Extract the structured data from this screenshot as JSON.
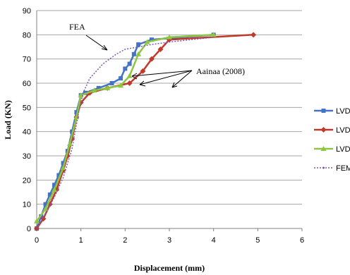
{
  "chart_data": {
    "type": "line",
    "xlabel": "Displacement (mm)",
    "ylabel": "Load (KN)",
    "xlim": [
      0,
      6
    ],
    "ylim": [
      0,
      90
    ],
    "x_ticks": [
      "0",
      "1",
      "2",
      "3",
      "4",
      "5",
      "6"
    ],
    "y_ticks": [
      "0",
      "10",
      "20",
      "30",
      "40",
      "50",
      "60",
      "70",
      "80",
      "90"
    ],
    "grid": "horizontal",
    "legend_position": "right",
    "series": [
      {
        "name": "LVDT",
        "color": "#4472C4",
        "marker": "square",
        "points": [
          [
            0,
            0
          ],
          [
            0.1,
            5
          ],
          [
            0.2,
            10
          ],
          [
            0.3,
            14
          ],
          [
            0.4,
            18
          ],
          [
            0.5,
            22
          ],
          [
            0.6,
            27
          ],
          [
            0.7,
            32
          ],
          [
            0.8,
            40
          ],
          [
            0.9,
            48
          ],
          [
            1.0,
            55
          ],
          [
            1.1,
            56
          ],
          [
            1.4,
            58
          ],
          [
            1.7,
            60
          ],
          [
            1.9,
            62
          ],
          [
            2.0,
            66
          ],
          [
            2.1,
            68
          ],
          [
            2.2,
            72
          ],
          [
            2.3,
            76
          ],
          [
            2.6,
            78
          ],
          [
            4.0,
            80
          ]
        ]
      },
      {
        "name": "LVDT",
        "color": "#C0392B",
        "marker": "diamond",
        "points": [
          [
            0,
            0
          ],
          [
            0.15,
            4
          ],
          [
            0.3,
            10
          ],
          [
            0.45,
            16
          ],
          [
            0.6,
            24
          ],
          [
            0.7,
            30
          ],
          [
            0.8,
            37
          ],
          [
            0.9,
            46
          ],
          [
            1.0,
            52
          ],
          [
            1.2,
            56
          ],
          [
            1.6,
            58
          ],
          [
            2.1,
            60
          ],
          [
            2.4,
            65
          ],
          [
            2.6,
            70
          ],
          [
            2.8,
            74
          ],
          [
            3.0,
            78
          ],
          [
            4.9,
            80
          ]
        ]
      },
      {
        "name": "LVDT",
        "color": "#8DC63F",
        "marker": "triangle",
        "points": [
          [
            0,
            3
          ],
          [
            0.2,
            8
          ],
          [
            0.4,
            16
          ],
          [
            0.6,
            25
          ],
          [
            0.75,
            35
          ],
          [
            0.9,
            46
          ],
          [
            1.0,
            55
          ],
          [
            1.3,
            57
          ],
          [
            1.6,
            58
          ],
          [
            1.9,
            59
          ],
          [
            2.1,
            63
          ],
          [
            2.3,
            72
          ],
          [
            2.5,
            77
          ],
          [
            3.0,
            79
          ],
          [
            4.0,
            80
          ]
        ]
      },
      {
        "name": "FEM",
        "color": "#7B5CB5",
        "marker": "dots",
        "points": [
          [
            0,
            0
          ],
          [
            0.2,
            6
          ],
          [
            0.4,
            13
          ],
          [
            0.6,
            21
          ],
          [
            0.8,
            33
          ],
          [
            0.95,
            48
          ],
          [
            1.05,
            56
          ],
          [
            1.2,
            62
          ],
          [
            1.5,
            68
          ],
          [
            1.8,
            72
          ],
          [
            2.0,
            74
          ],
          [
            2.3,
            75
          ],
          [
            2.6,
            76
          ],
          [
            3.0,
            77
          ],
          [
            3.5,
            78
          ],
          [
            4.0,
            79
          ]
        ]
      }
    ],
    "annotations": [
      {
        "text": "FEA"
      },
      {
        "text": "Aainaa (2008)"
      }
    ]
  }
}
